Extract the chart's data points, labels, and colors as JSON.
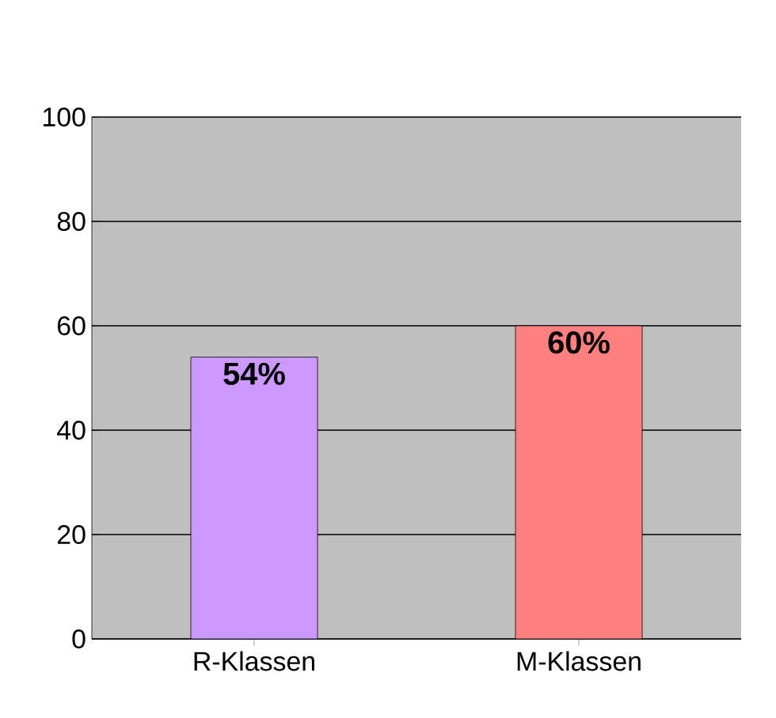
{
  "chart_data": {
    "type": "bar",
    "categories": [
      "R-Klassen",
      "M-Klassen"
    ],
    "values": [
      54,
      60
    ],
    "colors": [
      "#cc99ff",
      "#ff8080"
    ],
    "value_labels": [
      "54%",
      "60%"
    ],
    "ylim": [
      0,
      100
    ],
    "yticks": [
      0,
      20,
      40,
      60,
      80,
      100
    ],
    "grid": "y"
  }
}
